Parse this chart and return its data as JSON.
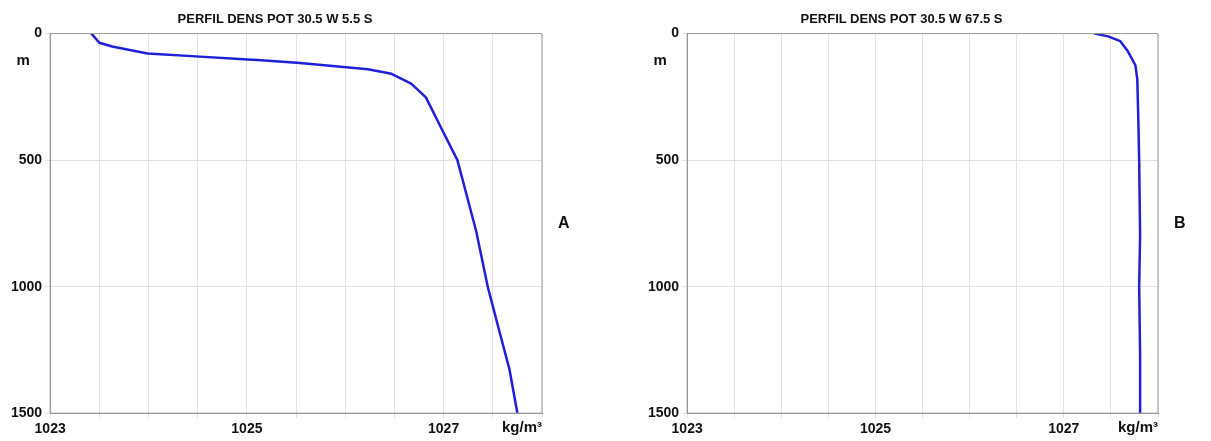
{
  "chart_data": [
    {
      "type": "line",
      "title": "PERFIL DENS POT 30.5 W 5.5 S",
      "xlabel": "kg/m³",
      "ylabel": "m",
      "annotations": [
        "A"
      ],
      "grid": true,
      "marker": "none",
      "line_style": "solid",
      "legend": false,
      "xlim": [
        1023,
        1028
      ],
      "xticks": [
        1023,
        {
          "value": 1023.5,
          "label": null
        },
        {
          "value": 1024,
          "label": null
        },
        {
          "value": 1024.5,
          "label": null
        },
        1025,
        {
          "value": 1025.5,
          "label": null
        },
        {
          "value": 1026,
          "label": null
        },
        {
          "value": 1026.5,
          "label": null
        },
        1027,
        {
          "value": 1027.5,
          "label": null
        },
        {
          "value": 1028,
          "label": null
        }
      ],
      "ylim": [
        1500,
        0
      ],
      "yticks": [
        0,
        500,
        1000,
        1500
      ],
      "series": [
        {
          "color": "#1f1fd8",
          "x": [
            1023.42,
            1023.5,
            1023.63,
            1023.99,
            1024.48,
            1025.01,
            1025.54,
            1026.23,
            1026.47,
            1026.67,
            1026.82,
            1026.96,
            1027.14,
            1027.33,
            1027.45,
            1027.57,
            1027.67,
            1027.75
          ],
          "values": [
            0,
            36,
            51,
            79,
            90,
            102,
            116,
            141,
            159,
            198,
            252,
            361,
            500,
            779,
            1003,
            1181,
            1328,
            1500
          ]
        }
      ]
    },
    {
      "type": "line",
      "title": "PERFIL DENS POT 30.5 W 67.5 S",
      "xlabel": "kg/m³",
      "ylabel": "m",
      "annotations": [
        "B"
      ],
      "grid": true,
      "marker": "none",
      "line_style": "solid",
      "legend": false,
      "xlim": [
        1023,
        1028
      ],
      "xticks": [
        1023,
        {
          "value": 1023.5,
          "label": null
        },
        {
          "value": 1024,
          "label": null
        },
        {
          "value": 1024.5,
          "label": null
        },
        1025,
        {
          "value": 1025.5,
          "label": null
        },
        {
          "value": 1026,
          "label": null
        },
        {
          "value": 1026.5,
          "label": null
        },
        1027,
        {
          "value": 1027.5,
          "label": null
        },
        {
          "value": 1028,
          "label": null
        }
      ],
      "ylim": [
        1500,
        0
      ],
      "yticks": [
        0,
        500,
        1000,
        1500
      ],
      "series": [
        {
          "color": "#1f1fd8",
          "x": [
            1027.33,
            1027.47,
            1027.6,
            1027.68,
            1027.76,
            1027.78,
            1027.79,
            1027.8,
            1027.81,
            1027.8,
            1027.81,
            1027.81
          ],
          "values": [
            0,
            11,
            30,
            70,
            125,
            180,
            322,
            500,
            796,
            1000,
            1270,
            1500
          ]
        }
      ]
    }
  ]
}
